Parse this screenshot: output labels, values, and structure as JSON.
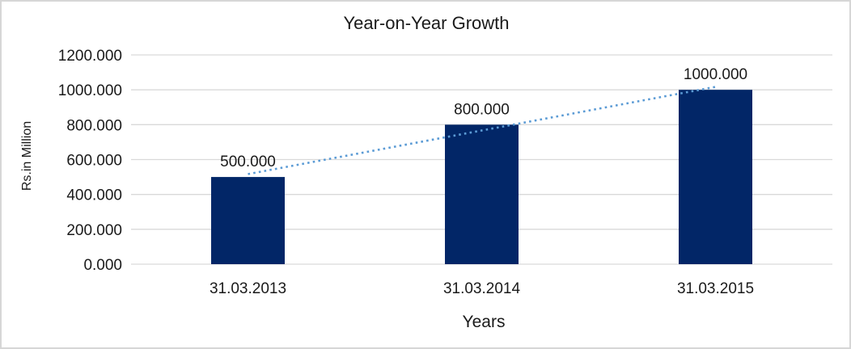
{
  "page": {
    "background": "#ffffff",
    "border_color": "#d6d6d6"
  },
  "chart_data": {
    "type": "bar",
    "title": "Year-on-Year Growth",
    "xlabel": "Years",
    "ylabel": "Rs.in Million",
    "categories": [
      "31.03.2013",
      "31.03.2014",
      "31.03.2015"
    ],
    "values": [
      500,
      800,
      1000
    ],
    "value_labels": [
      "500.000",
      "800.000",
      "1000.000"
    ],
    "y_axis": {
      "min": 0,
      "max": 1200,
      "ticks": [
        {
          "value": 0,
          "label": "0.000"
        },
        {
          "value": 200,
          "label": "200.000"
        },
        {
          "value": 400,
          "label": "400.000"
        },
        {
          "value": 600,
          "label": "600.000"
        },
        {
          "value": 800,
          "label": "800.000"
        },
        {
          "value": 1000,
          "label": "1000.000"
        },
        {
          "value": 1200,
          "label": "1200.000"
        }
      ]
    },
    "grid": true,
    "legend": "none",
    "trendline": {
      "style": "dotted",
      "from_value": 516.7,
      "to_value": 1016.7
    },
    "colors": {
      "bar": "#022667",
      "trendline": "#5b9bd5",
      "gridline": "#d9d9d9",
      "text": "#1a1a1a"
    }
  }
}
